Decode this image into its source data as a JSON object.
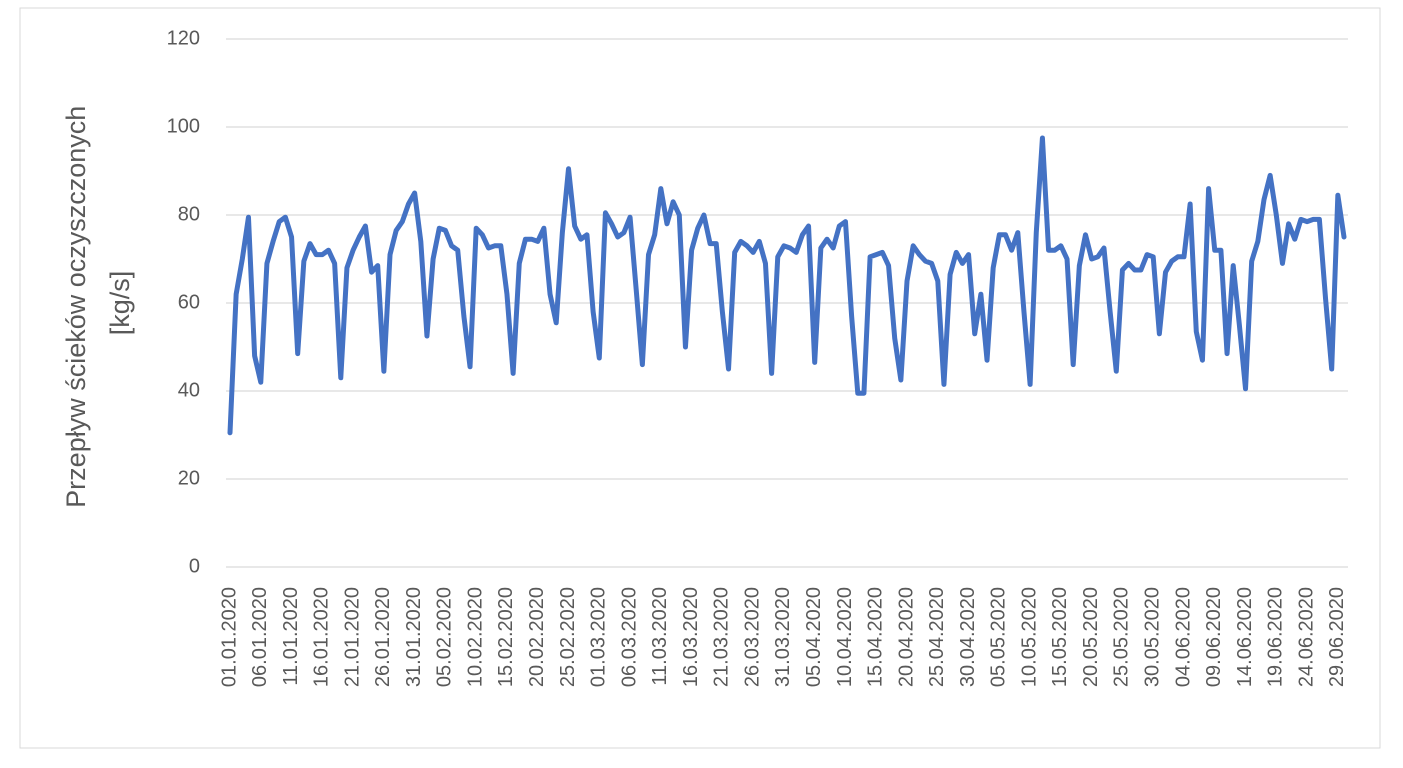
{
  "chart_data": {
    "type": "line",
    "y_label": [
      "Przepływ ścieków oczyszczonych",
      "[kg/s]"
    ],
    "categories": [
      "01.01.2020",
      null,
      null,
      null,
      null,
      "06.01.2020",
      null,
      null,
      null,
      null,
      "11.01.2020",
      null,
      null,
      null,
      null,
      "16.01.2020",
      null,
      null,
      null,
      null,
      "21.01.2020",
      null,
      null,
      null,
      null,
      "26.01.2020",
      null,
      null,
      null,
      null,
      "31.01.2020",
      null,
      null,
      null,
      null,
      "05.02.2020",
      null,
      null,
      null,
      null,
      "10.02.2020",
      null,
      null,
      null,
      null,
      "15.02.2020",
      null,
      null,
      null,
      null,
      "20.02.2020",
      null,
      null,
      null,
      null,
      "25.02.2020",
      null,
      null,
      null,
      null,
      "01.03.2020",
      null,
      null,
      null,
      null,
      "06.03.2020",
      null,
      null,
      null,
      null,
      "11.03.2020",
      null,
      null,
      null,
      null,
      "16.03.2020",
      null,
      null,
      null,
      null,
      "21.03.2020",
      null,
      null,
      null,
      null,
      "26.03.2020",
      null,
      null,
      null,
      null,
      "31.03.2020",
      null,
      null,
      null,
      null,
      "05.04.2020",
      null,
      null,
      null,
      null,
      "10.04.2020",
      null,
      null,
      null,
      null,
      "15.04.2020",
      null,
      null,
      null,
      null,
      "20.04.2020",
      null,
      null,
      null,
      null,
      "25.04.2020",
      null,
      null,
      null,
      null,
      "30.04.2020",
      null,
      null,
      null,
      null,
      "05.05.2020",
      null,
      null,
      null,
      null,
      "10.05.2020",
      null,
      null,
      null,
      null,
      "15.05.2020",
      null,
      null,
      null,
      null,
      "20.05.2020",
      null,
      null,
      null,
      null,
      "25.05.2020",
      null,
      null,
      null,
      null,
      "30.05.2020",
      null,
      null,
      null,
      null,
      "04.06.2020",
      null,
      null,
      null,
      null,
      "09.06.2020",
      null,
      null,
      null,
      null,
      "14.06.2020",
      null,
      null,
      null,
      null,
      "19.06.2020",
      null,
      null,
      null,
      null,
      "24.06.2020",
      null,
      null,
      null,
      null,
      "29.06.2020",
      null
    ],
    "values": [
      30.5,
      62,
      70,
      79.5,
      48,
      42,
      69,
      74,
      78.5,
      79.5,
      75,
      48.5,
      69.5,
      73.5,
      71,
      71,
      72,
      69,
      43,
      68,
      72,
      75,
      77.5,
      67,
      68.5,
      44.5,
      71,
      76.5,
      78.5,
      82.5,
      85,
      74,
      52.5,
      70,
      77,
      76.5,
      73,
      72,
      57,
      45.5,
      77,
      75.5,
      72.5,
      73,
      73,
      62,
      44,
      69,
      74.5,
      74.5,
      74,
      77,
      62,
      55.5,
      76,
      90.5,
      77.5,
      74.5,
      75.5,
      58,
      47.5,
      80.5,
      78,
      75,
      76,
      79.5,
      63,
      46,
      71,
      75.5,
      86,
      78,
      83,
      80,
      50,
      72,
      77,
      80,
      73.5,
      73.5,
      58,
      45,
      71.5,
      74,
      73,
      71.5,
      74,
      69,
      44,
      70.5,
      73,
      72.5,
      71.5,
      75.5,
      77.5,
      46.5,
      72.5,
      74.5,
      72.5,
      77.5,
      78.5,
      57,
      39.5,
      39.5,
      70.5,
      71,
      71.5,
      68.5,
      52,
      42.5,
      65,
      73,
      71,
      69.5,
      69,
      65,
      41.5,
      66.5,
      71.5,
      69,
      71,
      53,
      62,
      47,
      68,
      75.5,
      75.5,
      72,
      76,
      58,
      41.5,
      76,
      97.5,
      72,
      72,
      73,
      70,
      46,
      68.5,
      75.5,
      70,
      70.5,
      72.5,
      58,
      44.5,
      67.5,
      69,
      67.5,
      67.5,
      71,
      70.5,
      53,
      67,
      69.5,
      70.5,
      70.5,
      82.5,
      53.5,
      47,
      86,
      72,
      72,
      48.5,
      68.5,
      55,
      40.5,
      69.5,
      74,
      83.5,
      89,
      80,
      69,
      78,
      74.5,
      79,
      78.5,
      79,
      79,
      61,
      45,
      84.5,
      75
    ],
    "color": "#4472c4",
    "ylim": [
      0,
      120
    ],
    "yticks": [
      0,
      20,
      40,
      60,
      80,
      100,
      120
    ],
    "grid": true
  }
}
